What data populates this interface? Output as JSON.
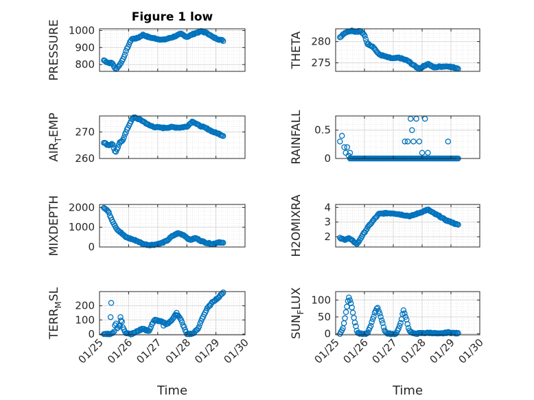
{
  "figure": {
    "title": "Figure 1 low",
    "x_axis_label": "Time"
  },
  "colors": {
    "marker": "#0072BD",
    "axis": "#262626",
    "grid_major": "#d9d9d9",
    "grid_minor": "#e6e6e6"
  },
  "chart_data": [
    {
      "type": "scatter",
      "panel": "pressure",
      "title": "Figure 1 low",
      "ylabel": "PRESSURE",
      "xlabel": "",
      "xlim": [
        "01/25",
        "01/30"
      ],
      "ylim": [
        760,
        1010
      ],
      "yticks": [
        800,
        900,
        1000
      ],
      "xticks": [
        "01/25",
        "01/26",
        "01/27",
        "01/28",
        "01/29",
        "01/30"
      ],
      "grid": true,
      "anchors": [
        [
          0.15,
          825
        ],
        [
          0.3,
          810
        ],
        [
          0.45,
          808
        ],
        [
          0.55,
          770
        ],
        [
          0.7,
          800
        ],
        [
          0.8,
          830
        ],
        [
          0.95,
          895
        ],
        [
          1.1,
          950
        ],
        [
          1.3,
          955
        ],
        [
          1.5,
          975
        ],
        [
          1.7,
          960
        ],
        [
          2.0,
          950
        ],
        [
          2.2,
          945
        ],
        [
          2.5,
          960
        ],
        [
          2.8,
          980
        ],
        [
          3.0,
          962
        ],
        [
          3.3,
          985
        ],
        [
          3.5,
          995
        ],
        [
          3.7,
          985
        ],
        [
          3.9,
          960
        ],
        [
          4.1,
          948
        ],
        [
          4.25,
          940
        ]
      ]
    },
    {
      "type": "scatter",
      "panel": "theta",
      "ylabel": "THETA",
      "ylim": [
        273,
        283
      ],
      "yticks": [
        275,
        280
      ],
      "grid": true,
      "anchors": [
        [
          0.15,
          281
        ],
        [
          0.3,
          282
        ],
        [
          0.4,
          282.3
        ],
        [
          0.55,
          282.6
        ],
        [
          0.7,
          282.3
        ],
        [
          0.85,
          282.5
        ],
        [
          1.0,
          281.5
        ],
        [
          1.1,
          279.5
        ],
        [
          1.3,
          278.8
        ],
        [
          1.5,
          277
        ],
        [
          1.8,
          276.3
        ],
        [
          2.0,
          276
        ],
        [
          2.2,
          276.2
        ],
        [
          2.5,
          275.5
        ],
        [
          2.75,
          274.2
        ],
        [
          2.9,
          273.6
        ],
        [
          3.2,
          274.8
        ],
        [
          3.4,
          273.9
        ],
        [
          3.6,
          274.1
        ],
        [
          3.9,
          274.2
        ],
        [
          4.1,
          273.9
        ],
        [
          4.25,
          273.7
        ]
      ]
    },
    {
      "type": "scatter",
      "panel": "air_temp",
      "ylabel": "AIR_TEMP",
      "ylim": [
        260,
        276
      ],
      "yticks": [
        260,
        270
      ],
      "grid": true,
      "anchors": [
        [
          0.15,
          266
        ],
        [
          0.3,
          265
        ],
        [
          0.45,
          265.5
        ],
        [
          0.55,
          262
        ],
        [
          0.7,
          266
        ],
        [
          0.8,
          267
        ],
        [
          0.95,
          271
        ],
        [
          1.1,
          274.5
        ],
        [
          1.2,
          275.5
        ],
        [
          1.3,
          275
        ],
        [
          1.5,
          274
        ],
        [
          1.7,
          272.5
        ],
        [
          1.9,
          271.8
        ],
        [
          2.2,
          271.5
        ],
        [
          2.5,
          271.8
        ],
        [
          2.75,
          271.6
        ],
        [
          3.0,
          272
        ],
        [
          3.2,
          274
        ],
        [
          3.4,
          272.5
        ],
        [
          3.7,
          271.2
        ],
        [
          3.9,
          270
        ],
        [
          4.1,
          269.3
        ],
        [
          4.25,
          268.5
        ]
      ]
    },
    {
      "type": "scatter",
      "panel": "rainfall",
      "ylabel": "RAINFALL",
      "ylim": [
        0,
        0.75
      ],
      "yticks": [
        0,
        0.5
      ],
      "grid": true,
      "points": [
        [
          0.15,
          0.3
        ],
        [
          0.22,
          0.4
        ],
        [
          0.3,
          0.2
        ],
        [
          0.35,
          0.1
        ],
        [
          0.4,
          0.2
        ],
        [
          0.45,
          0.05
        ],
        [
          0.5,
          0.1
        ],
        [
          2.4,
          0.3
        ],
        [
          2.5,
          0.3
        ],
        [
          2.6,
          0.7
        ],
        [
          2.65,
          0.5
        ],
        [
          2.7,
          0.3
        ],
        [
          2.8,
          0.7
        ],
        [
          2.9,
          0.3
        ],
        [
          3.0,
          0.1
        ],
        [
          3.1,
          0.7
        ],
        [
          3.2,
          0.1
        ],
        [
          3.9,
          0.3
        ]
      ],
      "zero_range": [
        0.5,
        4.25
      ]
    },
    {
      "type": "scatter",
      "panel": "mixdepth",
      "ylabel": "MIXDEPTH",
      "ylim": [
        0,
        2150
      ],
      "yticks": [
        0,
        1000,
        2000
      ],
      "grid": true,
      "anchors": [
        [
          0.15,
          2000
        ],
        [
          0.3,
          1800
        ],
        [
          0.45,
          1300
        ],
        [
          0.6,
          900
        ],
        [
          0.75,
          700
        ],
        [
          0.9,
          500
        ],
        [
          1.1,
          400
        ],
        [
          1.3,
          300
        ],
        [
          1.5,
          150
        ],
        [
          1.7,
          100
        ],
        [
          1.9,
          120
        ],
        [
          2.1,
          180
        ],
        [
          2.3,
          300
        ],
        [
          2.5,
          550
        ],
        [
          2.7,
          700
        ],
        [
          2.9,
          600
        ],
        [
          3.1,
          350
        ],
        [
          3.3,
          450
        ],
        [
          3.5,
          300
        ],
        [
          3.7,
          200
        ],
        [
          3.9,
          150
        ],
        [
          4.1,
          250
        ],
        [
          4.25,
          200
        ]
      ]
    },
    {
      "type": "scatter",
      "panel": "h2omixra",
      "ylabel": "H2OMIXRA",
      "ylim": [
        1.3,
        4.2
      ],
      "yticks": [
        2,
        3,
        4
      ],
      "grid": true,
      "anchors": [
        [
          0.15,
          1.9
        ],
        [
          0.3,
          1.8
        ],
        [
          0.45,
          1.9
        ],
        [
          0.6,
          1.7
        ],
        [
          0.75,
          1.5
        ],
        [
          0.9,
          2.0
        ],
        [
          1.1,
          2.6
        ],
        [
          1.3,
          3.1
        ],
        [
          1.5,
          3.55
        ],
        [
          1.7,
          3.6
        ],
        [
          2.0,
          3.6
        ],
        [
          2.3,
          3.5
        ],
        [
          2.6,
          3.4
        ],
        [
          2.8,
          3.55
        ],
        [
          3.0,
          3.7
        ],
        [
          3.2,
          3.85
        ],
        [
          3.4,
          3.6
        ],
        [
          3.6,
          3.4
        ],
        [
          3.8,
          3.15
        ],
        [
          4.0,
          3.0
        ],
        [
          4.25,
          2.8
        ]
      ]
    },
    {
      "type": "scatter",
      "panel": "terr_msl",
      "ylabel": "TERR_MSL",
      "ylim": [
        -5,
        300
      ],
      "yticks": [
        0,
        100,
        200
      ],
      "xlabel": "Time",
      "grid": true,
      "anchors": [
        [
          0.15,
          0
        ],
        [
          0.3,
          2
        ],
        [
          0.4,
          0
        ],
        [
          0.5,
          20
        ],
        [
          0.55,
          90
        ],
        [
          0.6,
          40
        ],
        [
          0.7,
          60
        ],
        [
          0.75,
          110
        ],
        [
          0.8,
          50
        ],
        [
          0.9,
          10
        ],
        [
          1.1,
          0
        ],
        [
          1.3,
          20
        ],
        [
          1.5,
          40
        ],
        [
          1.7,
          20
        ],
        [
          1.8,
          70
        ],
        [
          1.9,
          100
        ],
        [
          2.1,
          90
        ],
        [
          2.3,
          70
        ],
        [
          2.5,
          100
        ],
        [
          2.6,
          140
        ],
        [
          2.7,
          130
        ],
        [
          2.8,
          100
        ],
        [
          2.9,
          50
        ],
        [
          3.0,
          0
        ],
        [
          3.2,
          2
        ],
        [
          3.4,
          40
        ],
        [
          3.5,
          100
        ],
        [
          3.7,
          180
        ],
        [
          3.9,
          230
        ],
        [
          4.1,
          260
        ],
        [
          4.25,
          295
        ]
      ],
      "extra_points": [
        [
          0.4,
          220
        ],
        [
          0.38,
          120
        ],
        [
          0.72,
          120
        ],
        [
          2.65,
          150
        ],
        [
          2.2,
          60
        ],
        [
          1.6,
          25
        ]
      ]
    },
    {
      "type": "scatter",
      "panel": "sun_flux",
      "ylabel": "SUN_FLUX",
      "ylim": [
        -3,
        125
      ],
      "yticks": [
        0,
        50,
        100
      ],
      "xlabel": "Time",
      "grid": true,
      "anchors": [
        [
          0.15,
          0
        ],
        [
          0.25,
          15
        ],
        [
          0.35,
          60
        ],
        [
          0.45,
          110
        ],
        [
          0.55,
          85
        ],
        [
          0.65,
          40
        ],
        [
          0.75,
          5
        ],
        [
          0.85,
          0
        ],
        [
          1.1,
          0
        ],
        [
          1.2,
          20
        ],
        [
          1.35,
          60
        ],
        [
          1.45,
          78
        ],
        [
          1.55,
          55
        ],
        [
          1.7,
          10
        ],
        [
          1.8,
          0
        ],
        [
          2.1,
          0
        ],
        [
          2.25,
          30
        ],
        [
          2.35,
          70
        ],
        [
          2.45,
          45
        ],
        [
          2.55,
          10
        ],
        [
          2.7,
          0
        ],
        [
          3.0,
          2
        ],
        [
          3.3,
          3
        ],
        [
          3.6,
          0
        ],
        [
          3.9,
          4
        ],
        [
          4.25,
          1
        ]
      ]
    }
  ]
}
